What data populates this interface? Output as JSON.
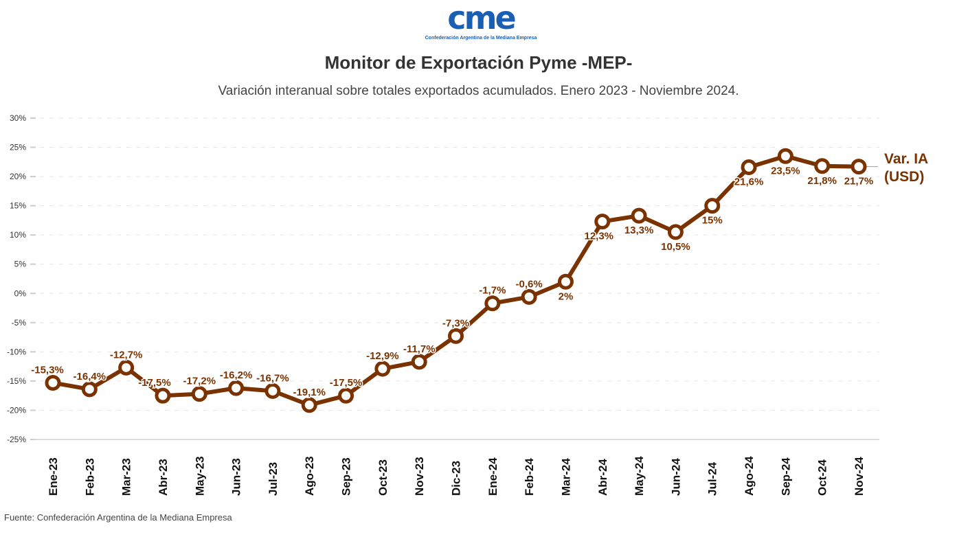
{
  "logo": {
    "text": "cme",
    "tagline": "Confederación Argentina de la Mediana Empresa"
  },
  "title": "Monitor de Exportación Pyme -MEP-",
  "subtitle": "Variación interanual sobre totales exportados acumulados. Enero 2023 - Noviembre 2024.",
  "source": "Fuente: Confederación Argentina de la Mediana Empresa",
  "chart_data": {
    "type": "line",
    "categories": [
      "Ene-23",
      "Feb-23",
      "Mar-23",
      "Abr-23",
      "May-23",
      "Jun-23",
      "Jul-23",
      "Ago-23",
      "Sep-23",
      "Oct-23",
      "Nov-23",
      "Dic-23",
      "Ene-24",
      "Feb-24",
      "Mar-24",
      "Abr-24",
      "May-24",
      "Jun-24",
      "Jul-24",
      "Ago-24",
      "Sep-24",
      "Oct-24",
      "Nov-24"
    ],
    "series": [
      {
        "name": "Var. IA (USD)",
        "values": [
          -15.3,
          -16.4,
          -12.7,
          -17.5,
          -17.2,
          -16.2,
          -16.7,
          -19.1,
          -17.5,
          -12.9,
          -11.7,
          -7.3,
          -1.7,
          -0.6,
          2,
          12.3,
          13.3,
          10.5,
          15,
          21.6,
          23.5,
          21.8,
          21.7
        ],
        "labels": [
          "-15,3%",
          "-16,4%",
          "-12,7%",
          "-17,5%",
          "-17,2%",
          "-16,2%",
          "-16,7%",
          "-19,1%",
          "-17,5%",
          "-12,9%",
          "-11,7%",
          "-7,3%",
          "-1,7%",
          "-0,6%",
          "2%",
          "12,3%",
          "13,3%",
          "10,5%",
          "15%",
          "21,6%",
          "23,5%",
          "21,8%",
          "21,7%"
        ]
      }
    ],
    "series_label_lines": [
      "Var. IA",
      "(USD)"
    ],
    "yticks": [
      "30%",
      "25%",
      "20%",
      "15%",
      "10%",
      "5%",
      "0%",
      "-5%",
      "-10%",
      "-15%",
      "-20%",
      "-25%"
    ],
    "ylim": [
      -25,
      30
    ],
    "grid": true,
    "color": "#7a3300"
  }
}
